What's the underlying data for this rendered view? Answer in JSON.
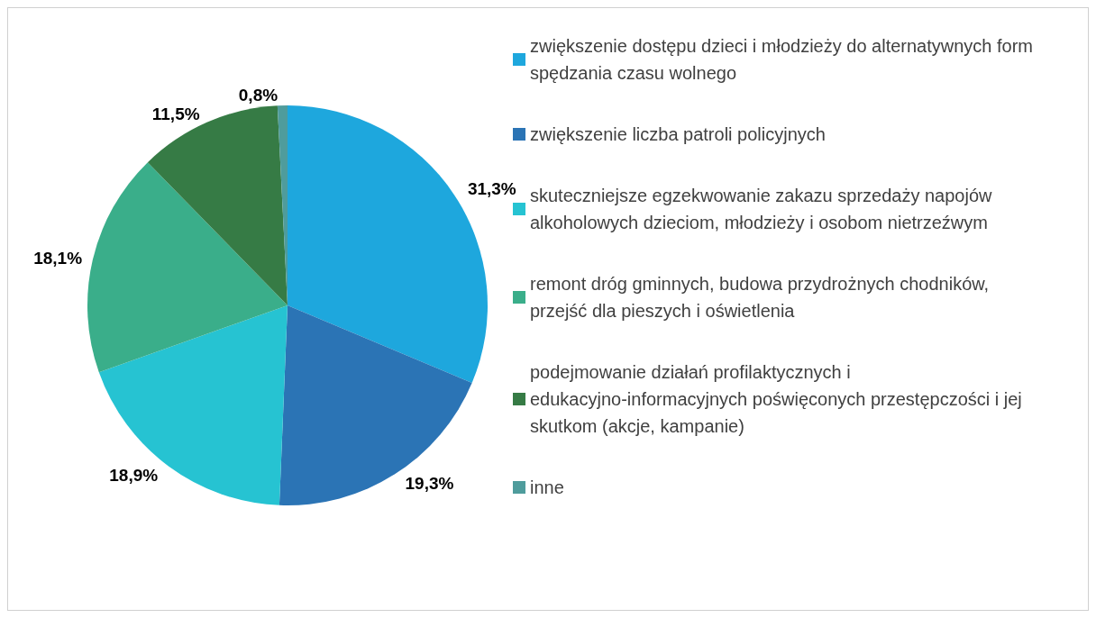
{
  "chart_data": {
    "type": "pie",
    "categories": [
      "zwiększenie dostępu dzieci i młodzieży do alternatywnych form spędzania czasu wolnego",
      "zwiększenie liczba patroli policyjnych",
      "skuteczniejsze egzekwowanie zakazu sprzedaży napojów alkoholowych dzieciom, młodzieży i osobom nietrzeźwym",
      "remont dróg gminnych, budowa przydrożnych chodników, przejść dla pieszych i oświetlenia",
      "podejmowanie działań profilaktycznych i edukacyjno-informacyjnych poświęconych przestępczości i jej skutkom (akcje, kampanie)",
      "inne"
    ],
    "values": [
      31.3,
      19.3,
      18.9,
      18.1,
      11.5,
      0.8
    ],
    "value_labels": [
      "31,3%",
      "19,3%",
      "18,9%",
      "18,1%",
      "11,5%",
      "0,8%"
    ],
    "colors": [
      "#1ea7dd",
      "#2b74b5",
      "#26c3d2",
      "#3aae8a",
      "#367b45",
      "#4f9c9c"
    ],
    "legend": "right"
  }
}
